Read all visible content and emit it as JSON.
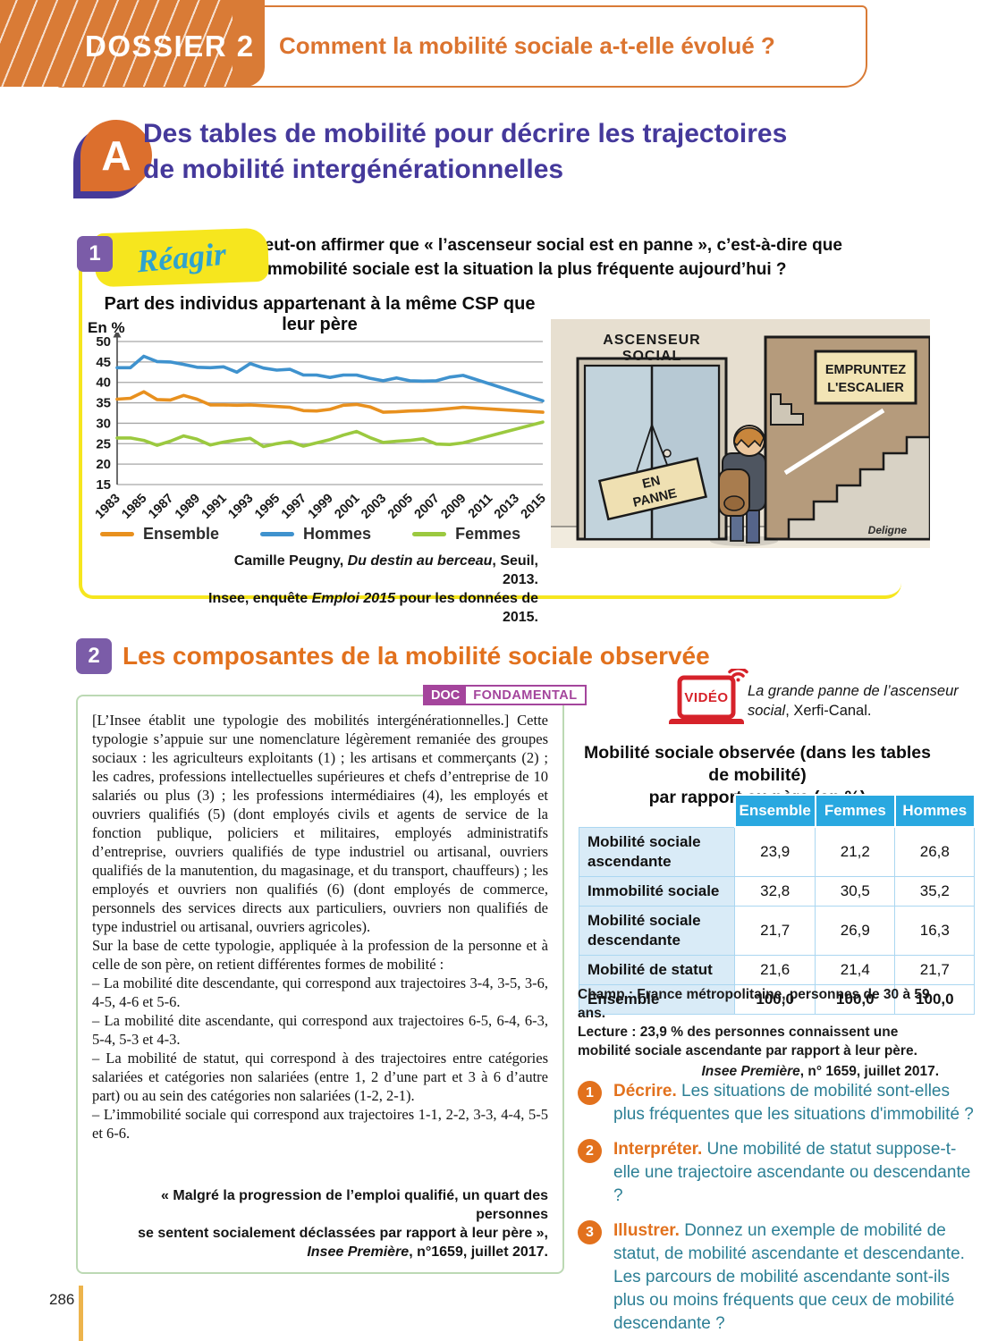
{
  "header": {
    "dossier_label": "DOSSIER 2",
    "title": "Comment la mobilité sociale a-t-elle évolué ?"
  },
  "section_a": {
    "badge": "A",
    "title_line1": "Des tables de mobilité pour décrire les trajectoires",
    "title_line2": "de mobilité intergénérationnelles"
  },
  "doc1": {
    "number": "1",
    "tag": "Réagir",
    "question": "Peut-on affirmer que « l’ascenseur social est en panne », c’est-à-dire que l’immobilité sociale est la situation la plus fréquente aujourd’hui ?",
    "source_line1_prefix": "Camille Peugny, ",
    "source_line1_italic": "Du destin au berceau",
    "source_line1_suffix": ", Seuil, 2013.",
    "source_line2_prefix": "Insee, enquête ",
    "source_line2_italic": "Emploi 2015",
    "source_line2_suffix": " pour les données de 2015.",
    "cartoon": {
      "elevator_sign_line1": "ASCENSEUR",
      "elevator_sign_line2": "SOCIAL",
      "panne_line1": "EN",
      "panne_line2": "PANNE",
      "stairs_sign_line1": "EMPRUNTEZ",
      "stairs_sign_line2": "L'ESCALIER",
      "signature": "Deligne"
    }
  },
  "chart_data": {
    "type": "line",
    "title": "Part des individus appartenant à la même CSP que leur père",
    "ylabel": "En %",
    "ylim": [
      15,
      50
    ],
    "ytick_step": 5,
    "grid": true,
    "legend_position": "bottom",
    "x": [
      1983,
      1984,
      1985,
      1986,
      1987,
      1988,
      1989,
      1990,
      1991,
      1992,
      1993,
      1994,
      1995,
      1996,
      1997,
      1998,
      1999,
      2000,
      2001,
      2002,
      2003,
      2004,
      2005,
      2006,
      2007,
      2008,
      2009,
      2015
    ],
    "xtick_labels": [
      1983,
      1985,
      1987,
      1989,
      1991,
      1993,
      1995,
      1997,
      1999,
      2001,
      2003,
      2005,
      2007,
      2009,
      2011,
      2013,
      2015
    ],
    "series": [
      {
        "name": "Ensemble",
        "color": "#E8901E",
        "values": [
          35.9,
          36.1,
          37.7,
          35.8,
          35.7,
          36.8,
          35.9,
          34.5,
          34.5,
          34.4,
          34.5,
          34.3,
          34.1,
          33.9,
          33.1,
          33.0,
          33.4,
          34.4,
          34.6,
          34.0,
          32.7,
          32.8,
          33.0,
          33.1,
          33.3,
          33.6,
          33.9,
          32.7
        ]
      },
      {
        "name": "Hommes",
        "color": "#3F92CE",
        "values": [
          43.6,
          43.6,
          46.4,
          45.1,
          45.0,
          44.4,
          43.7,
          43.6,
          43.8,
          42.5,
          44.6,
          43.5,
          43.0,
          43.2,
          41.8,
          41.8,
          41.2,
          41.8,
          41.8,
          41.0,
          40.4,
          41.1,
          40.4,
          40.3,
          40.4,
          41.3,
          41.7,
          35.5
        ]
      },
      {
        "name": "Femmes",
        "color": "#9BC93F",
        "values": [
          26.4,
          26.4,
          25.8,
          24.6,
          25.6,
          26.9,
          26.1,
          24.7,
          25.4,
          25.9,
          26.3,
          24.3,
          25.0,
          25.5,
          24.4,
          25.2,
          26.0,
          27.1,
          28.0,
          26.5,
          25.3,
          25.6,
          25.8,
          26.2,
          24.9,
          24.8,
          25.2,
          30.3
        ]
      }
    ]
  },
  "section_2": {
    "number": "2",
    "title": "Les composantes de la mobilité sociale observée"
  },
  "doc2": {
    "badge_doc": "DOC",
    "badge_fondamental": "FONDAMENTAL",
    "paragraphs": [
      "[L’Insee établit une typologie des mobilités intergénérationnelles.] Cette typologie s’appuie sur une nomenclature légèrement remaniée des groupes sociaux : les agriculteurs exploitants (1) ; les artisans et commerçants (2) ; les cadres, professions intellectuelles supérieures et chefs d’entreprise de 10 salariés ou plus (3) ; les professions intermédiaires (4), les employés et ouvriers qualifiés (5) (dont employés civils et agents de service de la fonction publique, policiers et militaires, employés administratifs d’entreprise, ouvriers qualifiés de type industriel ou artisanal, ouvriers qualifiés de la manutention, du magasinage, et du transport, chauffeurs) ; les employés et ouvriers non qualifiés (6) (dont employés de commerce, personnels des services directs aux particuliers, ouvriers non qualifiés de type industriel ou artisanal, ouvriers agricoles).",
      "Sur la base de cette typologie, appliquée à la profession de la personne et à celle de son père, on retient différentes formes de mobilité :",
      "– La mobilité dite descendante, qui correspond aux trajectoires 3-4, 3-5, 3-6, 4-5, 4-6 et 5-6.",
      "– La mobilité dite ascendante, qui correspond aux trajectoires 6-5, 6-4, 6-3, 5-4, 5-3 et 4-3.",
      "– La mobilité de statut, qui correspond à des trajectoires entre catégories salariées et catégories non salariées (entre 1, 2 d’une part et 3 à 6 d’autre part) ou au sein des catégories non salariées (1-2, 2-1).",
      "– L’immobilité sociale qui correspond aux trajectoires 1-1, 2-2, 3-3, 4-4, 5-5 et 6-6."
    ],
    "quote_line1": "« Malgré la progression de l’emploi qualifié, un quart des personnes",
    "quote_line2": "se sentent socialement déclassées par rapport à leur père »,",
    "quote_source_italic": "Insee Première",
    "quote_source_rest": ", n°1659, juillet 2017."
  },
  "video": {
    "label": "VIDÉO",
    "caption_italic": "La grande panne de l’ascenseur social",
    "caption_rest": ", Xerfi-Canal."
  },
  "table": {
    "title_line1": "Mobilité sociale observée (dans les tables de mobilité)",
    "title_line2": "par rapport au père (en %)",
    "columns": [
      "Ensemble",
      "Femmes",
      "Hommes"
    ],
    "rows": [
      {
        "label": "Mobilité sociale ascendante",
        "values": [
          "23,9",
          "21,2",
          "26,8"
        ],
        "bold": false
      },
      {
        "label": "Immobilité sociale",
        "values": [
          "32,8",
          "30,5",
          "35,2"
        ],
        "bold": false
      },
      {
        "label": "Mobilité sociale descendante",
        "values": [
          "21,7",
          "26,9",
          "16,3"
        ],
        "bold": false
      },
      {
        "label": "Mobilité de statut",
        "values": [
          "21,6",
          "21,4",
          "21,7"
        ],
        "bold": false
      },
      {
        "label": "Ensemble",
        "values": [
          "100,0",
          "100,0",
          "100,0"
        ],
        "bold": true
      }
    ],
    "note_champ": "Champ : France métropolitaine, personnes de 30 à 59 ans.",
    "note_lecture": "Lecture : 23,9 % des personnes connaissent une mobilité sociale ascendante par rapport à leur père.",
    "source_italic": "Insee Première",
    "source_rest": ", n° 1659, juillet 2017."
  },
  "questions": [
    {
      "num": "1",
      "verb": "Décrire.",
      "text": " Les situations de mobilité sont-elles plus fréquentes que les situations d'immobilité ?"
    },
    {
      "num": "2",
      "verb": "Interpréter.",
      "text": " Une mobilité de statut suppose-t-elle une trajectoire ascendante ou descendante ?"
    },
    {
      "num": "3",
      "verb": "Illustrer.",
      "text": " Donnez un exemple de mobilité de statut, de mobilité ascendante et descendante. Les parcours de mobilité ascendante sont-ils plus ou moins fréquents que ceux de mobilité descendante ?"
    }
  ],
  "footer": {
    "page_number": "286"
  },
  "colors": {
    "orange_brand": "#D97B36",
    "orange_accent": "#E2711D",
    "purple_title": "#45399B",
    "purple_badge": "#7B5CA8",
    "yellow_frame": "#F6E61E",
    "teal_question": "#2C7F95",
    "table_header_blue": "#29A8E0",
    "table_label_blue": "#D9EBF7",
    "doc_badge_magenta": "#A4459C",
    "video_red": "#D6222A",
    "series_ensemble": "#E8901E",
    "series_hommes": "#3F92CE",
    "series_femmes": "#9BC93F"
  }
}
